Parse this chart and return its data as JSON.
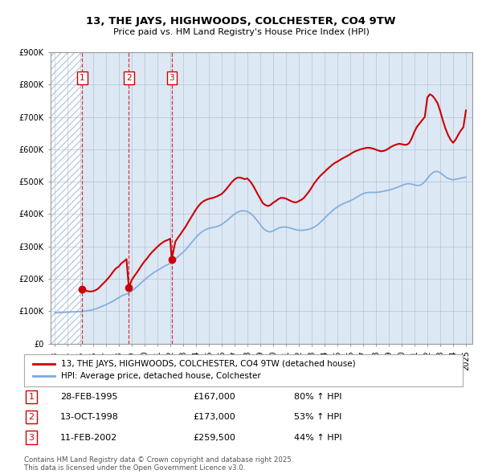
{
  "title": "13, THE JAYS, HIGHWOODS, COLCHESTER, CO4 9TW",
  "subtitle": "Price paid vs. HM Land Registry's House Price Index (HPI)",
  "ylim": [
    0,
    900000
  ],
  "yticks": [
    0,
    100000,
    200000,
    300000,
    400000,
    500000,
    600000,
    700000,
    800000,
    900000
  ],
  "ytick_labels": [
    "£0",
    "£100K",
    "£200K",
    "£300K",
    "£400K",
    "£500K",
    "£600K",
    "£700K",
    "£800K",
    "£900K"
  ],
  "xlim_start": 1992.7,
  "xlim_end": 2025.5,
  "transactions": [
    {
      "num": 1,
      "year": 1995.167,
      "price": 167000,
      "label": "28-FEB-1995",
      "price_str": "£167,000",
      "hpi_str": "80% ↑ HPI"
    },
    {
      "num": 2,
      "year": 1998.783,
      "price": 173000,
      "label": "13-OCT-1998",
      "price_str": "£173,000",
      "hpi_str": "53% ↑ HPI"
    },
    {
      "num": 3,
      "year": 2002.117,
      "price": 259500,
      "label": "11-FEB-2002",
      "price_str": "£259,500",
      "hpi_str": "44% ↑ HPI"
    }
  ],
  "legend_label_red": "13, THE JAYS, HIGHWOODS, COLCHESTER, CO4 9TW (detached house)",
  "legend_label_blue": "HPI: Average price, detached house, Colchester",
  "footer": "Contains HM Land Registry data © Crown copyright and database right 2025.\nThis data is licensed under the Open Government Licence v3.0.",
  "bg_color": "#dde8f5",
  "hatch_color": "#b8cfe0",
  "grid_color": "#b0b8c8",
  "red_color": "#cc0000",
  "blue_color": "#7aaadd",
  "hatch_end_year": 1995.167,
  "hpi_years": [
    1993.0,
    1993.25,
    1993.5,
    1993.75,
    1994.0,
    1994.25,
    1994.5,
    1994.75,
    1995.0,
    1995.25,
    1995.5,
    1995.75,
    1996.0,
    1996.25,
    1996.5,
    1996.75,
    1997.0,
    1997.25,
    1997.5,
    1997.75,
    1998.0,
    1998.25,
    1998.5,
    1998.75,
    1999.0,
    1999.25,
    1999.5,
    1999.75,
    2000.0,
    2000.25,
    2000.5,
    2000.75,
    2001.0,
    2001.25,
    2001.5,
    2001.75,
    2002.0,
    2002.25,
    2002.5,
    2002.75,
    2003.0,
    2003.25,
    2003.5,
    2003.75,
    2004.0,
    2004.25,
    2004.5,
    2004.75,
    2005.0,
    2005.25,
    2005.5,
    2005.75,
    2006.0,
    2006.25,
    2006.5,
    2006.75,
    2007.0,
    2007.25,
    2007.5,
    2007.75,
    2008.0,
    2008.25,
    2008.5,
    2008.75,
    2009.0,
    2009.25,
    2009.5,
    2009.75,
    2010.0,
    2010.25,
    2010.5,
    2010.75,
    2011.0,
    2011.25,
    2011.5,
    2011.75,
    2012.0,
    2012.25,
    2012.5,
    2012.75,
    2013.0,
    2013.25,
    2013.5,
    2013.75,
    2014.0,
    2014.25,
    2014.5,
    2014.75,
    2015.0,
    2015.25,
    2015.5,
    2015.75,
    2016.0,
    2016.25,
    2016.5,
    2016.75,
    2017.0,
    2017.25,
    2017.5,
    2017.75,
    2018.0,
    2018.25,
    2018.5,
    2018.75,
    2019.0,
    2019.25,
    2019.5,
    2019.75,
    2020.0,
    2020.25,
    2020.5,
    2020.75,
    2021.0,
    2021.25,
    2021.5,
    2021.75,
    2022.0,
    2022.25,
    2022.5,
    2022.75,
    2023.0,
    2023.25,
    2023.5,
    2023.75,
    2024.0,
    2024.25,
    2024.5,
    2024.75,
    2025.0
  ],
  "hpi_values": [
    95000,
    95500,
    96000,
    96500,
    97000,
    97500,
    98000,
    98500,
    99000,
    100000,
    101000,
    103000,
    105000,
    108000,
    112000,
    116000,
    120000,
    125000,
    130000,
    136000,
    142000,
    148000,
    152000,
    156000,
    162000,
    170000,
    179000,
    188000,
    197000,
    205000,
    213000,
    220000,
    226000,
    232000,
    238000,
    243000,
    248000,
    256000,
    265000,
    274000,
    282000,
    292000,
    304000,
    316000,
    328000,
    338000,
    346000,
    352000,
    356000,
    358000,
    360000,
    363000,
    368000,
    375000,
    383000,
    392000,
    400000,
    406000,
    410000,
    410000,
    408000,
    402000,
    393000,
    381000,
    368000,
    355000,
    348000,
    345000,
    348000,
    353000,
    358000,
    360000,
    360000,
    358000,
    355000,
    352000,
    350000,
    350000,
    351000,
    353000,
    356000,
    361000,
    368000,
    377000,
    387000,
    397000,
    406000,
    415000,
    422000,
    428000,
    433000,
    437000,
    441000,
    446000,
    452000,
    458000,
    463000,
    466000,
    467000,
    467000,
    467000,
    468000,
    470000,
    472000,
    474000,
    477000,
    480000,
    484000,
    488000,
    492000,
    494000,
    493000,
    490000,
    488000,
    490000,
    498000,
    510000,
    522000,
    530000,
    532000,
    528000,
    520000,
    512000,
    508000,
    506000,
    508000,
    510000,
    512000,
    514000
  ],
  "red_years": [
    1995.167,
    1995.4,
    1995.6,
    1995.8,
    1996.0,
    1996.2,
    1996.4,
    1996.6,
    1996.8,
    1997.0,
    1997.2,
    1997.4,
    1997.6,
    1997.8,
    1998.0,
    1998.2,
    1998.4,
    1998.6,
    1998.783,
    1999.0,
    1999.2,
    1999.4,
    1999.6,
    1999.8,
    2000.0,
    2000.2,
    2000.4,
    2000.6,
    2000.8,
    2001.0,
    2001.2,
    2001.4,
    2001.6,
    2001.8,
    2002.0,
    2002.117,
    2002.4,
    2002.6,
    2002.8,
    2003.0,
    2003.2,
    2003.4,
    2003.6,
    2003.8,
    2004.0,
    2004.2,
    2004.4,
    2004.6,
    2004.8,
    2005.0,
    2005.2,
    2005.4,
    2005.6,
    2005.8,
    2006.0,
    2006.2,
    2006.4,
    2006.6,
    2006.8,
    2007.0,
    2007.2,
    2007.4,
    2007.6,
    2007.8,
    2008.0,
    2008.2,
    2008.4,
    2008.6,
    2008.8,
    2009.0,
    2009.2,
    2009.4,
    2009.6,
    2009.8,
    2010.0,
    2010.2,
    2010.4,
    2010.6,
    2010.8,
    2011.0,
    2011.2,
    2011.4,
    2011.6,
    2011.8,
    2012.0,
    2012.2,
    2012.4,
    2012.6,
    2012.8,
    2013.0,
    2013.2,
    2013.4,
    2013.6,
    2013.8,
    2014.0,
    2014.2,
    2014.4,
    2014.6,
    2014.8,
    2015.0,
    2015.2,
    2015.4,
    2015.6,
    2015.8,
    2016.0,
    2016.2,
    2016.4,
    2016.6,
    2016.8,
    2017.0,
    2017.2,
    2017.4,
    2017.6,
    2017.8,
    2018.0,
    2018.2,
    2018.4,
    2018.6,
    2018.8,
    2019.0,
    2019.2,
    2019.4,
    2019.6,
    2019.8,
    2020.0,
    2020.2,
    2020.4,
    2020.6,
    2020.8,
    2021.0,
    2021.2,
    2021.4,
    2021.6,
    2021.8,
    2022.0,
    2022.2,
    2022.4,
    2022.6,
    2022.8,
    2023.0,
    2023.2,
    2023.4,
    2023.6,
    2023.8,
    2024.0,
    2024.2,
    2024.4,
    2024.6,
    2024.8,
    2025.0
  ],
  "red_values": [
    167000,
    164000,
    162000,
    161000,
    162000,
    165000,
    170000,
    178000,
    186000,
    194000,
    203000,
    213000,
    224000,
    233000,
    238000,
    248000,
    254000,
    261000,
    173000,
    196000,
    208000,
    219000,
    231000,
    243000,
    254000,
    263000,
    274000,
    283000,
    291000,
    299000,
    306000,
    312000,
    317000,
    320000,
    324000,
    259500,
    315000,
    327000,
    338000,
    350000,
    361000,
    375000,
    388000,
    401000,
    414000,
    425000,
    434000,
    440000,
    444000,
    447000,
    449000,
    451000,
    454000,
    458000,
    462000,
    470000,
    479000,
    489000,
    499000,
    507000,
    512000,
    513000,
    511000,
    508000,
    510000,
    502000,
    491000,
    477000,
    462000,
    448000,
    434000,
    428000,
    425000,
    428000,
    435000,
    440000,
    446000,
    450000,
    450000,
    448000,
    444000,
    440000,
    437000,
    436000,
    440000,
    444000,
    450000,
    460000,
    470000,
    482000,
    495000,
    505000,
    515000,
    523000,
    530000,
    538000,
    545000,
    552000,
    558000,
    562000,
    567000,
    572000,
    576000,
    580000,
    585000,
    590000,
    594000,
    597000,
    600000,
    602000,
    604000,
    605000,
    604000,
    602000,
    599000,
    596000,
    594000,
    595000,
    598000,
    603000,
    608000,
    612000,
    615000,
    617000,
    616000,
    614000,
    614000,
    620000,
    635000,
    655000,
    670000,
    680000,
    690000,
    700000,
    760000,
    770000,
    765000,
    755000,
    742000,
    718000,
    690000,
    665000,
    645000,
    630000,
    620000,
    630000,
    645000,
    658000,
    668000,
    720000
  ]
}
